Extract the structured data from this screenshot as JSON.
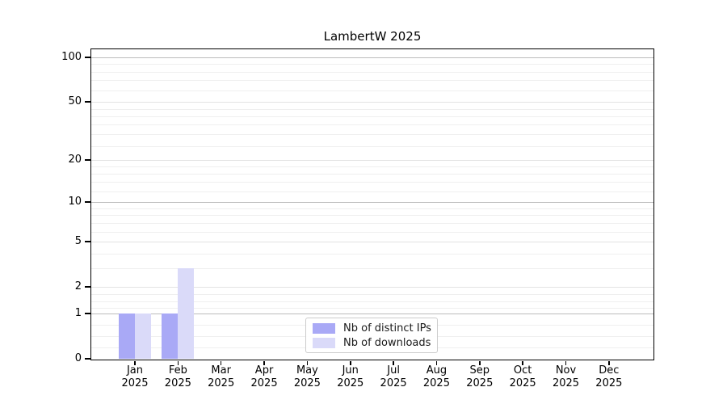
{
  "title": "LambertW 2025",
  "chart_data": {
    "type": "bar",
    "title": "LambertW 2025",
    "x_categories": [
      {
        "m": "Jan",
        "y": "2025"
      },
      {
        "m": "Feb",
        "y": "2025"
      },
      {
        "m": "Mar",
        "y": "2025"
      },
      {
        "m": "Apr",
        "y": "2025"
      },
      {
        "m": "May",
        "y": "2025"
      },
      {
        "m": "Jun",
        "y": "2025"
      },
      {
        "m": "Jul",
        "y": "2025"
      },
      {
        "m": "Aug",
        "y": "2025"
      },
      {
        "m": "Sep",
        "y": "2025"
      },
      {
        "m": "Oct",
        "y": "2025"
      },
      {
        "m": "Nov",
        "y": "2025"
      },
      {
        "m": "Dec",
        "y": "2025"
      }
    ],
    "series": [
      {
        "name": "Nb of distinct IPs",
        "color": "#a9a9f6",
        "values": [
          1,
          1,
          0,
          0,
          0,
          0,
          0,
          0,
          0,
          0,
          0,
          0
        ]
      },
      {
        "name": "Nb of downloads",
        "color": "#dadaf9",
        "values": [
          1,
          3,
          0,
          0,
          0,
          0,
          0,
          0,
          0,
          0,
          0,
          0
        ]
      }
    ],
    "yscale": "log1p",
    "ylim": [
      0,
      115
    ],
    "y_major_ticks": [
      0,
      1,
      2,
      5,
      10,
      20,
      50,
      100
    ],
    "y_emphasis_gridlines": [
      1,
      10,
      100
    ],
    "y_minor_gridlines": [
      0.19,
      0.41,
      0.68,
      1.19,
      1.41,
      1.68,
      3,
      4,
      6,
      7,
      8,
      9,
      12,
      14,
      16,
      18,
      25,
      30,
      35,
      40,
      45,
      60,
      70,
      80,
      90
    ],
    "grid": true,
    "legend_position": "lower center"
  }
}
